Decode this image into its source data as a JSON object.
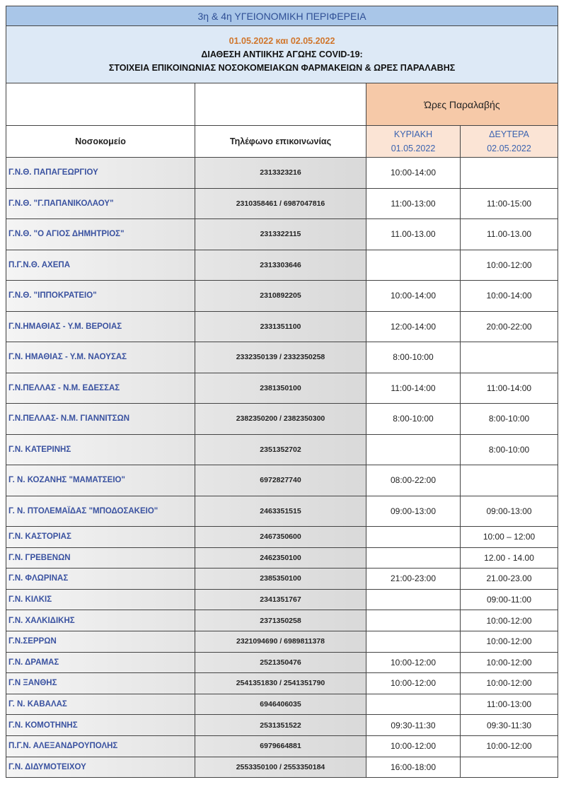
{
  "header": {
    "region": "3η & 4η ΥΓΕΙΟΝΟΜΙΚΗ ΠΕΡΙΦΕΡΕΙΑ",
    "dates": "01.05.2022 και 02.05.2022",
    "line1": "ΔΙΑΘΕΣΗ ΑΝΤΙΙΚΗΣ ΑΓΩΗΣ COVID-19:",
    "line2": "ΣΤΟΙΧΕΙΑ ΕΠΙΚΟΙΝΩΝΙΑΣ ΝΟΣΟΚΟΜΕΙΑΚΩΝ ΦΑΡΜΑΚΕΙΩΝ & ΩΡΕΣ ΠΑΡΑΛΑΒΗΣ",
    "hours_group": "Ώρες Παραλαβής"
  },
  "columns": {
    "hospital": "Νοσοκομείο",
    "phone": "Τηλέφωνο επικοινωνίας",
    "day1": "ΚΥΡΙΑΚΗ",
    "day1_date": "01.05.2022",
    "day2": "ΔΕΥΤΕΡΑ",
    "day2_date": "02.05.2022"
  },
  "colors": {
    "title_bg": "#a9c6e8",
    "subtitle_bg": "#dde9f6",
    "hours_bg": "#f6c9a8",
    "day_bg": "#fbe4d5",
    "name_text": "#3a52a0",
    "date_text": "#d0762c"
  },
  "rows": [
    {
      "name": "Γ.Ν.Θ. ΠΑΠΑΓΕΩΡΓΙΟΥ",
      "phone": "2313323216",
      "sun": "10:00-14:00",
      "mon": ""
    },
    {
      "name": "Γ.Ν.Θ. \"Γ.ΠΑΠΑΝΙΚΟΛΑΟΥ\"",
      "phone": "2310358461 / 6987047816",
      "sun": "11:00-13:00",
      "mon": "11:00-15:00"
    },
    {
      "name": "Γ.Ν.Θ. \"Ο ΑΓΙΟΣ ΔΗΜΗΤΡΙΟΣ\"",
      "phone": "2313322115",
      "sun": "11.00-13.00",
      "mon": "11.00-13.00"
    },
    {
      "name": "Π.Γ.Ν.Θ. ΑΧΕΠΑ",
      "phone": "2313303646",
      "sun": "",
      "mon": "10:00-12:00"
    },
    {
      "name": "Γ.Ν.Θ. \"ΙΠΠΟΚΡΑΤΕΙΟ\"",
      "phone": "2310892205",
      "sun": "10:00-14:00",
      "mon": "10:00-14:00"
    },
    {
      "name": "Γ.Ν.ΗΜΑΘΙΑΣ -  Υ.Μ. ΒΕΡΟΙΑΣ",
      "phone": "2331351100",
      "sun": "12:00-14:00",
      "mon": "20:00-22:00"
    },
    {
      "name": "Γ.Ν. ΗΜΑΘΙΑΣ - Υ.Μ. ΝΑΟΥΣΑΣ",
      "phone": "2332350139 / 2332350258",
      "sun": "8:00-10:00",
      "mon": ""
    },
    {
      "name": "Γ.Ν.ΠΕΛΛΑΣ - Ν.Μ. ΕΔΕΣΣΑΣ",
      "phone": "2381350100",
      "sun": "11:00-14:00",
      "mon": "11:00-14:00"
    },
    {
      "name": "Γ.Ν.ΠΕΛΛΑΣ- Ν.Μ. ΓΙΑΝΝΙΤΣΩΝ",
      "phone": "2382350200 / 2382350300",
      "sun": "8:00-10:00",
      "mon": "8:00-10:00"
    },
    {
      "name": "Γ.Ν. ΚΑΤΕΡΙΝΗΣ",
      "phone": "2351352702",
      "sun": "",
      "mon": "8:00-10:00"
    },
    {
      "name": "Γ. Ν. ΚΟΖΑΝΗΣ \"ΜΑΜΑΤΣΕΙΟ\"",
      "phone": "6972827740",
      "sun": "08:00-22:00",
      "mon": ""
    },
    {
      "name": "Γ. Ν. ΠΤΟΛΕΜΑΪΔΑΣ \"ΜΠΟΔΟΣΑΚΕΙΟ\"",
      "phone": "2463351515",
      "sun": "09:00-13:00",
      "mon": "09:00-13:00"
    },
    {
      "name": "Γ.Ν. ΚΑΣΤΟΡΙΑΣ",
      "phone": "2467350600",
      "sun": "",
      "mon": "10:00 – 12:00"
    },
    {
      "name": "Γ.Ν. ΓΡΕΒΕΝΩΝ",
      "phone": "2462350100",
      "sun": "",
      "mon": "12.00 - 14.00"
    },
    {
      "name": "Γ.Ν. ΦΛΩΡΙΝΑΣ",
      "phone": "2385350100",
      "sun": "21:00-23:00",
      "mon": "21.00-23.00"
    },
    {
      "name": "Γ.Ν. ΚΙΛΚΙΣ",
      "phone": "2341351767",
      "sun": "",
      "mon": "09:00-11:00"
    },
    {
      "name": "Γ.Ν. ΧΑΛΚΙΔΙΚΗΣ",
      "phone": "2371350258",
      "sun": "",
      "mon": "10:00-12:00"
    },
    {
      "name": "Γ.Ν.ΣΕΡΡΩΝ",
      "phone": "2321094690 / 6989811378",
      "sun": "",
      "mon": "10:00-12:00"
    },
    {
      "name": "Γ.Ν. ΔΡΑΜΑΣ",
      "phone": "2521350476",
      "sun": "10:00-12:00",
      "mon": "10:00-12:00"
    },
    {
      "name": "Γ.Ν ΞΑΝΘΗΣ",
      "phone": "2541351830 / 2541351790",
      "sun": "10:00-12:00",
      "mon": "10:00-12:00"
    },
    {
      "name": "Γ. Ν.  ΚΑΒΑΛΑΣ",
      "phone": "6946406035",
      "sun": "",
      "mon": "11:00-13:00"
    },
    {
      "name": "Γ.Ν. ΚΟΜΟΤΗΝΗΣ",
      "phone": "2531351522",
      "sun": "09:30-11:30",
      "mon": "09:30-11:30"
    },
    {
      "name": "Π.Γ.Ν. ΑΛΕΞΑΝΔΡΟΥΠΟΛΗΣ",
      "phone": "6979664881",
      "sun": "10:00-12:00",
      "mon": "10:00-12:00"
    },
    {
      "name": "Γ.Ν. ΔΙΔΥΜΟΤΕΙΧΟΥ",
      "phone": "2553350100 / 2553350184",
      "sun": "16:00-18:00",
      "mon": ""
    }
  ]
}
